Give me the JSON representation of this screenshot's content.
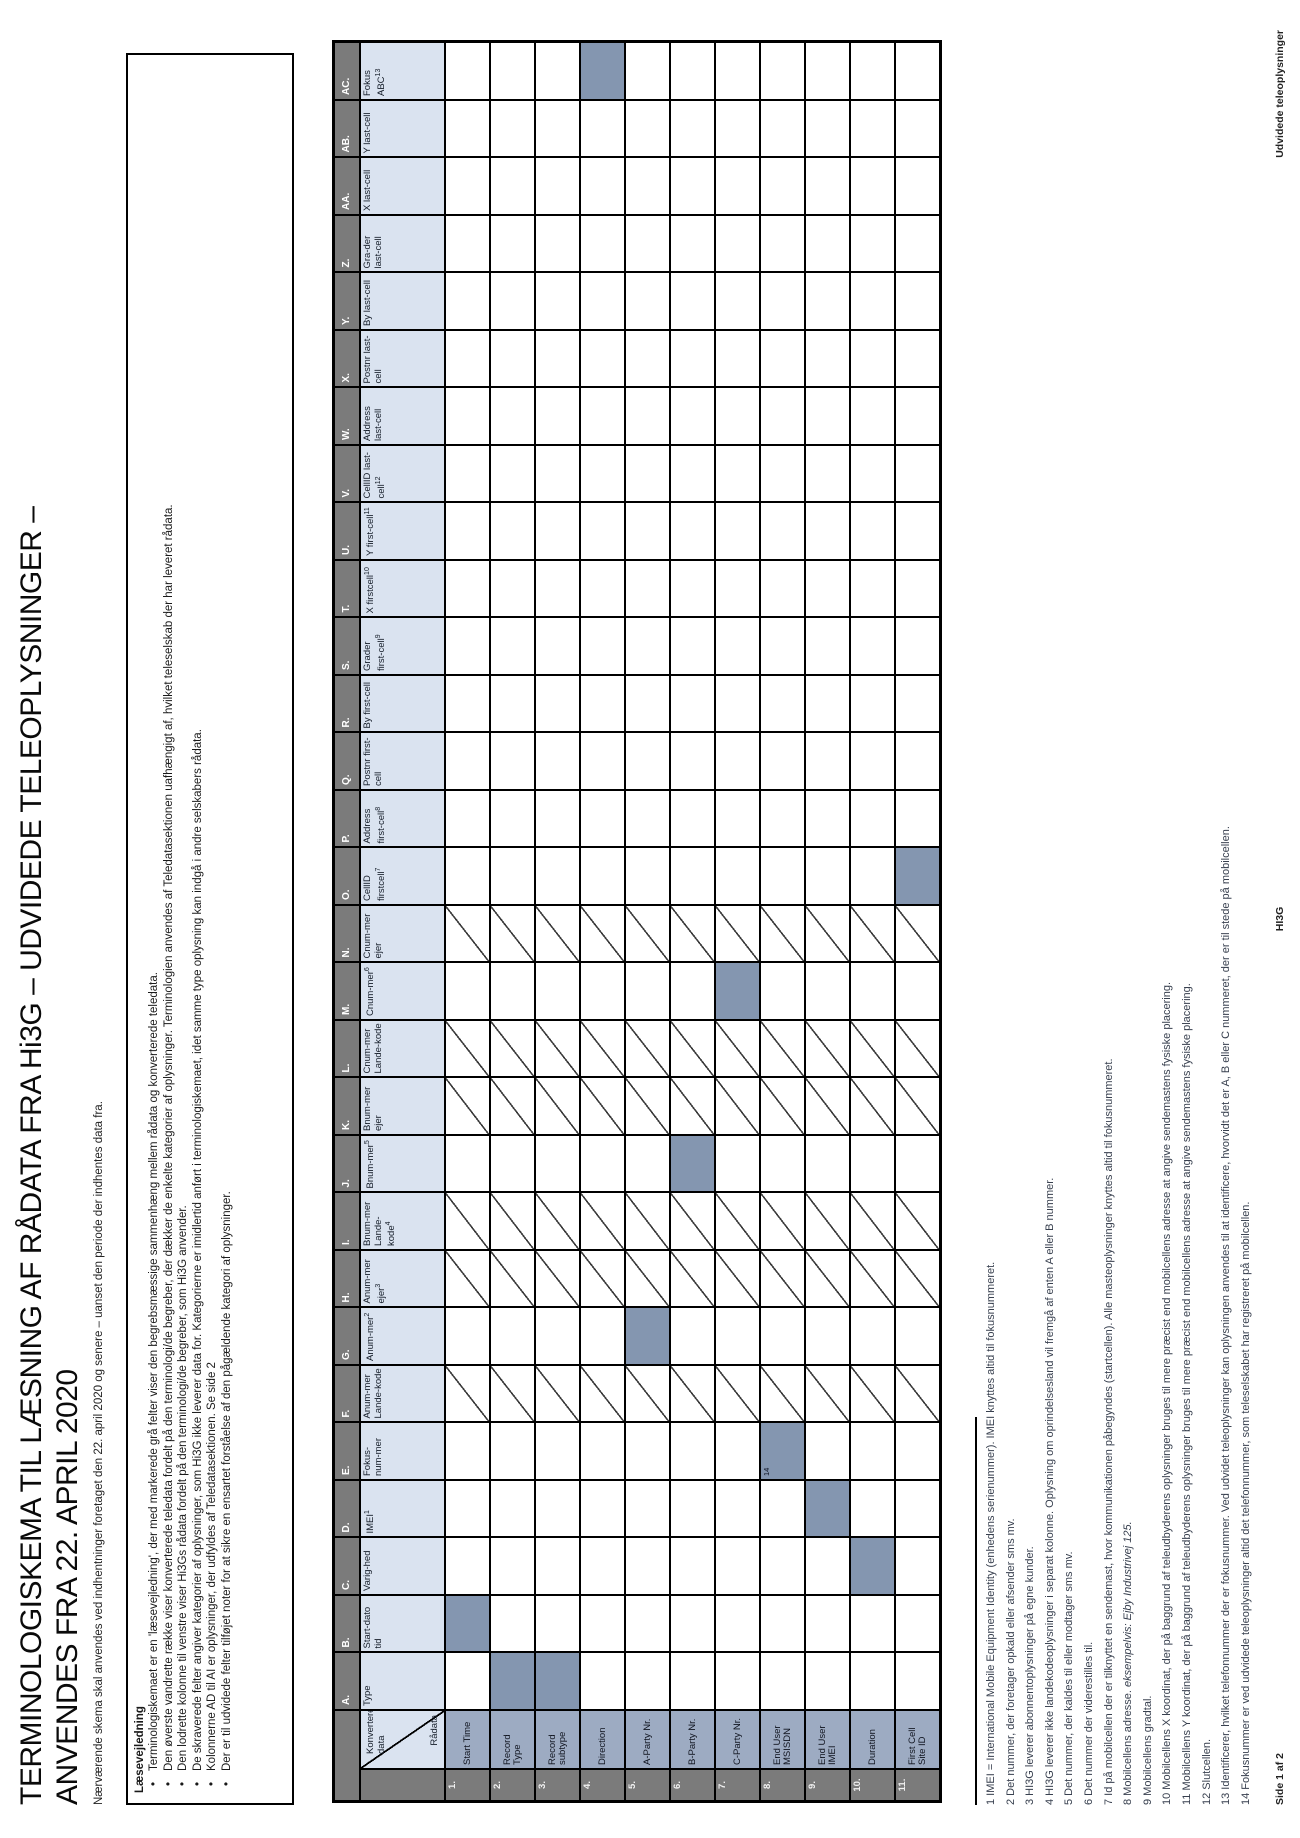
{
  "page": {
    "title_line1": "TERMINOLOGISKEMA TIL LÆSNING AF RÅDATA FRA Hi3G – UDVIDEDE TELEOPLYSNINGER –",
    "title_line2": "ANVENDES FRA 22. APRIL 2020",
    "subtitle": "Nærværende skema skal anvendes ved indhentninger foretaget den 22. april 2020 og senere – uanset den periode der indhentes data fra."
  },
  "reading_guide": {
    "heading": "Læsevejledning",
    "bullets": [
      "Terminologiskemaet er en 'læsevejledning', der med markerede grå felter viser den begrebsmæssige sammenhæng mellem rådata og konverterede teledata.",
      "Den øverste vandrette række viser konverterede teledata fordelt på den terminologi/de begreber, der dækker de enkelte kategorier af oplysninger. Terminologien anvendes af Teledatasektionen uafhængigt af, hvilket teleselskab der har leveret rådata.",
      "Den lodrette kolonne til venstre viser Hi3Gs rådata fordelt på den terminologi/de begreber, som Hi3G anvender.",
      "De skraverede felter angiver kategorier af oplysninger, som Hi3G ikke leverer data for. Kategorierne er imidlertid anført i terminologiskemaet, idet samme type oplysning kan indgå i andre selskabers rådata.",
      "Kolonnerne AD til AI er oplysninger, der udfyldes af Teledatasektionen. Se side 2",
      "Der er til udvidede felter tilføjet noter for at sikre en ensartet forståelse af den pågældende kategori af oplysninger."
    ]
  },
  "table": {
    "corner_top": "Konverteret data",
    "corner_bottom": "Rådata",
    "columns": [
      {
        "letter": "A.",
        "label": "Type"
      },
      {
        "letter": "B.",
        "label": "Start-dato tid"
      },
      {
        "letter": "C.",
        "label": "Varig-hed"
      },
      {
        "letter": "D.",
        "label": "IMEI",
        "sup": "1"
      },
      {
        "letter": "E.",
        "label": "Fokus-num-mer"
      },
      {
        "letter": "F.",
        "label": "Anum-mer Lande-kode"
      },
      {
        "letter": "G.",
        "label": "Anum-mer",
        "sup": "2"
      },
      {
        "letter": "H.",
        "label": "Anum-mer ejer",
        "sup": "3"
      },
      {
        "letter": "I.",
        "label": "Bnum-mer Lande-kode",
        "sup": "4"
      },
      {
        "letter": "J.",
        "label": "Bnum-mer",
        "sup": "5"
      },
      {
        "letter": "K.",
        "label": "Bnum-mer ejer"
      },
      {
        "letter": "L.",
        "label": "Cnum-mer Lande-kode"
      },
      {
        "letter": "M.",
        "label": "Cnum-mer",
        "sup": "6"
      },
      {
        "letter": "N.",
        "label": "Cnum-mer ejer"
      },
      {
        "letter": "O.",
        "label": "CellID firstcell",
        "sup": "7"
      },
      {
        "letter": "P.",
        "label": "Address first-cell",
        "sup": "8"
      },
      {
        "letter": "Q.",
        "label": "Postnr first-cell"
      },
      {
        "letter": "R.",
        "label": "By first-cell"
      },
      {
        "letter": "S.",
        "label": "Grader first-cell",
        "sup": "9"
      },
      {
        "letter": "T.",
        "label": "X firstcell",
        "sup": "10"
      },
      {
        "letter": "U.",
        "label": "Y first-cell",
        "sup": "11"
      },
      {
        "letter": "V.",
        "label": "CellID last-cell",
        "sup": "12"
      },
      {
        "letter": "W.",
        "label": "Address last-cell"
      },
      {
        "letter": "X.",
        "label": "Postnr last-cell"
      },
      {
        "letter": "Y.",
        "label": "By last-cell"
      },
      {
        "letter": "Z.",
        "label": "Gra-der last-cell"
      },
      {
        "letter": "AA.",
        "label": "X last-cell"
      },
      {
        "letter": "AB.",
        "label": "Y last-cell"
      },
      {
        "letter": "AC.",
        "label": "Fokus ABC",
        "sup": "13"
      }
    ],
    "rows": [
      {
        "num": "1.",
        "label": "Start Time"
      },
      {
        "num": "2.",
        "label": "Record Type"
      },
      {
        "num": "3.",
        "label": "Record subtype"
      },
      {
        "num": "4.",
        "label": "Direction"
      },
      {
        "num": "5.",
        "label": "A-Party Nr."
      },
      {
        "num": "6.",
        "label": "B-Party Nr."
      },
      {
        "num": "7.",
        "label": "C-Party Nr."
      },
      {
        "num": "8.",
        "label": "End User MSISDN"
      },
      {
        "num": "9.",
        "label": "End User IMEI"
      },
      {
        "num": "10.",
        "label": "Duration"
      },
      {
        "num": "11.",
        "label": "First Cell Site ID"
      }
    ],
    "gray_cells": [
      {
        "row": 1,
        "col": "B"
      },
      {
        "row": 2,
        "col": "A"
      },
      {
        "row": 3,
        "col": "A"
      },
      {
        "row": 4,
        "col": "AC"
      },
      {
        "row": 5,
        "col": "G"
      },
      {
        "row": 6,
        "col": "J"
      },
      {
        "row": 7,
        "col": "M"
      },
      {
        "row": 8,
        "col": "E",
        "sup": "14"
      },
      {
        "row": 9,
        "col": "D"
      },
      {
        "row": 10,
        "col": "C"
      },
      {
        "row": 11,
        "col": "O"
      }
    ],
    "hatched_columns": [
      "F",
      "H",
      "I",
      "K",
      "L",
      "N"
    ]
  },
  "footnotes": [
    {
      "num": "1",
      "text": "IMEI = International Mobile Equipment Identity (enhedens serienummer). IMEI knyttes altid til fokusnummeret."
    },
    {
      "num": "2",
      "text": "Det nummer, der foretager opkald eller afsender sms mv."
    },
    {
      "num": "3",
      "text": "HI3G leverer abonnentoplysninger på egne kunder."
    },
    {
      "num": "4",
      "text": "HI3G leverer ikke landekodeoplysninger i separat kolonne. Oplysning om oprindelsesland vil fremgå af enten A eller B nummer."
    },
    {
      "num": "5",
      "text": "Det nummer, der kaldes til eller modtager sms mv."
    },
    {
      "num": "6",
      "text": "Det nummer der viderestilles til."
    },
    {
      "num": "7",
      "text": "Id på mobilcellen der er tilknyttet en sendemast, hvor kommunikationen påbegyndes (startcellen). Alle masteoplysninger knyttes altid til fokusnummeret."
    },
    {
      "num": "8",
      "text": "Mobilcellens adresse.",
      "italic": " eksempelvis: Ejby Industrivej 125."
    },
    {
      "num": "9",
      "text": "Mobilcellens gradtal."
    },
    {
      "num": "10",
      "text": "Mobilcellens X koordinat, der på baggrund af teleudbyderens oplysninger bruges til mere præcist end mobilcellens adresse at angive sendemastens fysiske placering."
    },
    {
      "num": "11",
      "text": "Mobilcellens Y koordinat, der på baggrund af teleudbyderens oplysninger bruges til mere præcist end mobilcellens adresse at angive sendemastens fysiske placering."
    },
    {
      "num": "12",
      "text": "Slutcellen."
    },
    {
      "num": "13",
      "text": "Identificerer, hvilket telefonnummer der er fokusnummer. Ved udvidet teleoplysninger kan oplysningen anvendes til at identificere, hvorvidt det er A, B eller C nummeret, der er til stede på mobilcellen."
    },
    {
      "num": "14",
      "text": "Fokusnummer er ved udvidede teleoplysninger altid det telefonnummer, som teleselskabet har registreret på mobilcellen."
    }
  ],
  "footer": {
    "left": "Side 1 af 2",
    "center": "HI3G",
    "right": "Udvidede teleoplysninger"
  },
  "colors": {
    "header_fill": "#dae3f0",
    "band_fill": "#7b7b7b",
    "row_label_fill": "#9dabc2",
    "mapping_fill": "#8496b0"
  }
}
